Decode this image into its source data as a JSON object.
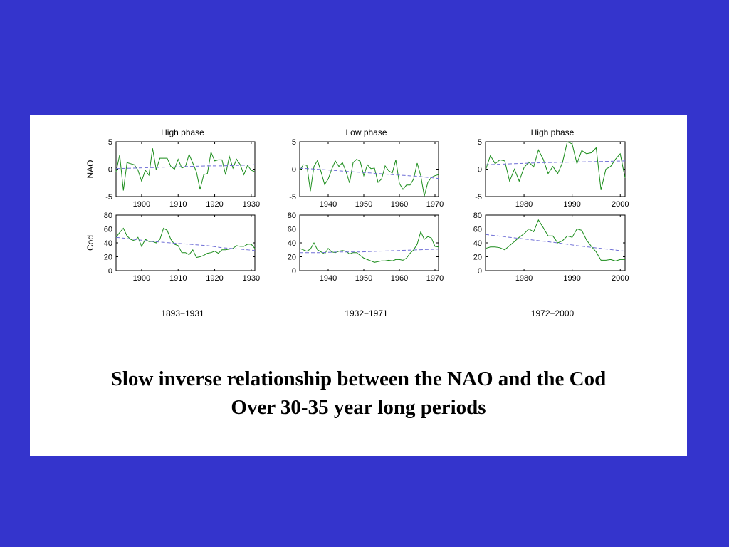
{
  "slide": {
    "caption_line1": "Slow inverse relationship between the NAO and the Cod",
    "caption_line2": "Over 30-35 year long periods"
  },
  "colors": {
    "background": "#3434cc",
    "panel": "#ffffff",
    "data_line": "#1a8c1a",
    "trend_line": "#6f6fd6"
  },
  "chart_data": [
    {
      "type": "line",
      "panel": "NAO 1893-1931",
      "title": "High phase",
      "ylabel": "NAO",
      "period": "",
      "xlim": [
        1893,
        1931
      ],
      "ylim": [
        -5,
        5
      ],
      "xticks": [
        1900,
        1910,
        1920,
        1930
      ],
      "yticks": [
        -5,
        0,
        5
      ],
      "x": [
        1893,
        1894,
        1895,
        1896,
        1897,
        1898,
        1899,
        1900,
        1901,
        1902,
        1903,
        1904,
        1905,
        1906,
        1907,
        1908,
        1909,
        1910,
        1911,
        1912,
        1913,
        1914,
        1915,
        1916,
        1917,
        1918,
        1919,
        1920,
        1921,
        1922,
        1923,
        1924,
        1925,
        1926,
        1927,
        1928,
        1929,
        1930,
        1931
      ],
      "series": [
        {
          "values": [
            -0.5,
            2.6,
            -3.9,
            1.2,
            1.0,
            0.8,
            -0.2,
            -2.2,
            -0.2,
            -1.1,
            3.8,
            -0.1,
            2.0,
            2.0,
            2.0,
            0.5,
            0.0,
            1.8,
            0.2,
            0.5,
            2.7,
            1.1,
            -0.5,
            -3.7,
            -1.0,
            -0.8,
            3.1,
            1.5,
            1.7,
            1.7,
            -1.0,
            2.3,
            0.2,
            1.8,
            0.8,
            -1.0,
            0.7,
            -0.2,
            -0.5
          ],
          "style": "solid"
        },
        {
          "values": [
            0.1,
            0.2,
            0.3,
            0.4,
            0.5,
            0.6,
            0.6,
            0.7,
            0.8
          ],
          "x": [
            1893,
            1898,
            1903,
            1908,
            1913,
            1918,
            1922,
            1927,
            1931
          ],
          "style": "dashed"
        }
      ]
    },
    {
      "type": "line",
      "panel": "NAO 1932-1971",
      "title": "Low phase",
      "ylabel": "",
      "period": "",
      "xlim": [
        1932,
        1971
      ],
      "ylim": [
        -5,
        5
      ],
      "xticks": [
        1940,
        1950,
        1960,
        1970
      ],
      "yticks": [
        -5,
        0,
        5
      ],
      "x": [
        1932,
        1933,
        1934,
        1935,
        1936,
        1937,
        1938,
        1939,
        1940,
        1941,
        1942,
        1943,
        1944,
        1945,
        1946,
        1947,
        1948,
        1949,
        1950,
        1951,
        1952,
        1953,
        1954,
        1955,
        1956,
        1957,
        1958,
        1959,
        1960,
        1961,
        1962,
        1963,
        1964,
        1965,
        1966,
        1967,
        1968,
        1969,
        1970,
        1971
      ],
      "series": [
        {
          "values": [
            -0.3,
            0.8,
            0.7,
            -4.0,
            0.5,
            1.6,
            -0.5,
            -2.8,
            -1.8,
            0.0,
            1.5,
            0.5,
            1.2,
            -0.4,
            -2.5,
            1.2,
            1.8,
            1.4,
            -1.2,
            0.8,
            0.1,
            0.2,
            -2.4,
            -1.8,
            0.6,
            -0.3,
            -0.7,
            1.7,
            -2.6,
            -3.7,
            -2.9,
            -2.9,
            -1.8,
            1.1,
            -1.2,
            -4.9,
            -2.4,
            -1.5,
            -1.2,
            -1.0
          ],
          "style": "solid"
        },
        {
          "values": [
            0.2,
            -0.1,
            -0.4,
            -0.7,
            -1.0,
            -1.3,
            -1.7
          ],
          "x": [
            1932,
            1939,
            1945,
            1952,
            1958,
            1965,
            1971
          ],
          "style": "dashed"
        }
      ]
    },
    {
      "type": "line",
      "panel": "NAO 1972-2000",
      "title": "High phase",
      "ylabel": "",
      "period": "",
      "xlim": [
        1972,
        2001
      ],
      "ylim": [
        -5,
        5
      ],
      "xticks": [
        1980,
        1990,
        2000
      ],
      "yticks": [
        -5,
        0,
        5
      ],
      "x": [
        1972,
        1973,
        1974,
        1975,
        1976,
        1977,
        1978,
        1979,
        1980,
        1981,
        1982,
        1983,
        1984,
        1985,
        1986,
        1987,
        1988,
        1989,
        1990,
        1991,
        1992,
        1993,
        1994,
        1995,
        1996,
        1997,
        1998,
        1999,
        2000,
        2001
      ],
      "series": [
        {
          "values": [
            -0.2,
            2.5,
            1.0,
            1.7,
            1.5,
            -2.2,
            0.0,
            -2.2,
            0.3,
            1.3,
            0.4,
            3.5,
            1.8,
            -0.8,
            0.5,
            -0.8,
            1.2,
            5.0,
            4.6,
            1.0,
            3.4,
            2.8,
            3.0,
            3.9,
            -3.8,
            0.0,
            0.5,
            1.8,
            2.8,
            -1.6
          ],
          "style": "solid"
        },
        {
          "values": [
            0.8,
            1.0,
            1.2,
            1.3,
            1.4,
            1.5
          ],
          "x": [
            1972,
            1978,
            1984,
            1990,
            1996,
            2001
          ],
          "style": "dashed"
        }
      ]
    },
    {
      "type": "line",
      "panel": "Cod 1893-1931",
      "title": "",
      "ylabel": "Cod",
      "period": "1893−1931",
      "xlim": [
        1893,
        1931
      ],
      "ylim": [
        0,
        80
      ],
      "xticks": [
        1900,
        1910,
        1920,
        1930
      ],
      "yticks": [
        0,
        20,
        40,
        60,
        80
      ],
      "x": [
        1893,
        1894,
        1895,
        1896,
        1897,
        1898,
        1899,
        1900,
        1901,
        1902,
        1903,
        1904,
        1905,
        1906,
        1907,
        1908,
        1909,
        1910,
        1911,
        1912,
        1913,
        1914,
        1915,
        1916,
        1917,
        1918,
        1919,
        1920,
        1921,
        1922,
        1923,
        1924,
        1925,
        1926,
        1927,
        1928,
        1929,
        1930,
        1931
      ],
      "series": [
        {
          "values": [
            48,
            55,
            61,
            50,
            45,
            43,
            48,
            35,
            45,
            42,
            42,
            40,
            45,
            61,
            58,
            45,
            38,
            36,
            26,
            26,
            23,
            30,
            19,
            20,
            22,
            25,
            26,
            28,
            25,
            30,
            30,
            31,
            32,
            36,
            35,
            35,
            38,
            38,
            32
          ],
          "style": "solid"
        },
        {
          "values": [
            48,
            45,
            42,
            40,
            38,
            36,
            33,
            31,
            29
          ],
          "x": [
            1893,
            1898,
            1903,
            1908,
            1913,
            1918,
            1922,
            1927,
            1931
          ],
          "style": "dashed"
        }
      ]
    },
    {
      "type": "line",
      "panel": "Cod 1932-1971",
      "title": "",
      "ylabel": "",
      "period": "1932−1971",
      "xlim": [
        1932,
        1971
      ],
      "ylim": [
        0,
        80
      ],
      "xticks": [
        1940,
        1950,
        1960,
        1970
      ],
      "yticks": [
        0,
        20,
        40,
        60,
        80
      ],
      "x": [
        1932,
        1933,
        1934,
        1935,
        1936,
        1937,
        1938,
        1939,
        1940,
        1941,
        1942,
        1943,
        1944,
        1945,
        1946,
        1947,
        1948,
        1949,
        1950,
        1951,
        1952,
        1953,
        1954,
        1955,
        1956,
        1957,
        1958,
        1959,
        1960,
        1961,
        1962,
        1963,
        1964,
        1965,
        1966,
        1967,
        1968,
        1969,
        1970,
        1971
      ],
      "series": [
        {
          "values": [
            32,
            30,
            28,
            31,
            40,
            30,
            27,
            24,
            32,
            27,
            26,
            28,
            29,
            28,
            24,
            26,
            26,
            22,
            18,
            16,
            14,
            12,
            13,
            14,
            14,
            15,
            14,
            16,
            16,
            15,
            18,
            25,
            30,
            38,
            56,
            45,
            49,
            47,
            35,
            34
          ],
          "style": "solid"
        },
        {
          "values": [
            26,
            26,
            27,
            27,
            28,
            29,
            30,
            31
          ],
          "x": [
            1932,
            1938,
            1943,
            1949,
            1954,
            1960,
            1965,
            1971
          ],
          "style": "dashed"
        }
      ]
    },
    {
      "type": "line",
      "panel": "Cod 1972-2000",
      "title": "",
      "ylabel": "",
      "period": "1972−2000",
      "xlim": [
        1972,
        2001
      ],
      "ylim": [
        0,
        80
      ],
      "xticks": [
        1980,
        1990,
        2000
      ],
      "yticks": [
        0,
        20,
        40,
        60,
        80
      ],
      "x": [
        1972,
        1973,
        1974,
        1975,
        1976,
        1977,
        1978,
        1979,
        1980,
        1981,
        1982,
        1983,
        1984,
        1985,
        1986,
        1987,
        1988,
        1989,
        1990,
        1991,
        1992,
        1993,
        1994,
        1995,
        1996,
        1997,
        1998,
        1999,
        2000,
        2001
      ],
      "series": [
        {
          "values": [
            32,
            34,
            34,
            33,
            30,
            36,
            42,
            48,
            53,
            60,
            56,
            73,
            62,
            50,
            50,
            40,
            43,
            50,
            48,
            60,
            58,
            44,
            35,
            27,
            15,
            15,
            16,
            14,
            16,
            16
          ],
          "style": "solid"
        },
        {
          "values": [
            52,
            48,
            44,
            40,
            36,
            32,
            28
          ],
          "x": [
            1972,
            1977,
            1982,
            1987,
            1991,
            1996,
            2001
          ],
          "style": "dashed"
        }
      ]
    }
  ]
}
